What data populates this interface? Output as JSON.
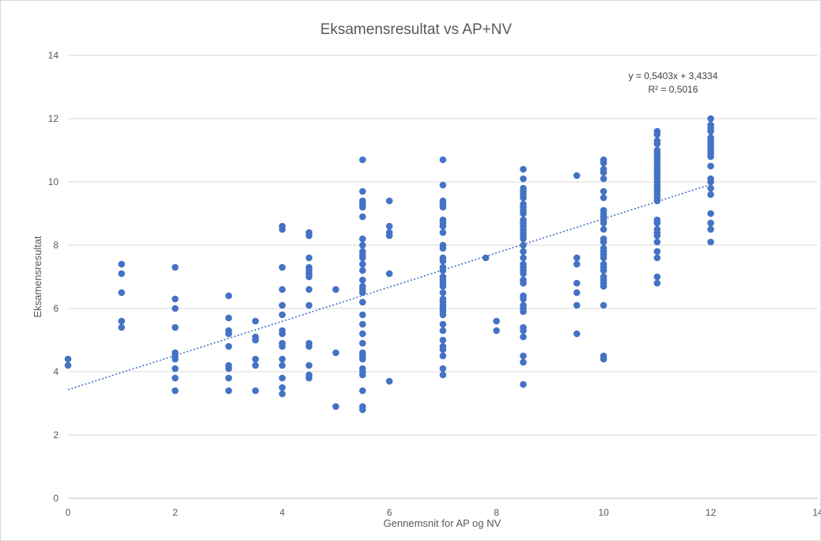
{
  "chart_data": {
    "type": "scatter",
    "title": "Eksamensresultat vs AP+NV",
    "xlabel": "Gennemsnit for AP og NV",
    "ylabel": "Eksamensresultat",
    "xlim": [
      0,
      14
    ],
    "ylim": [
      0,
      14
    ],
    "x_ticks": [
      "0",
      "2",
      "4",
      "6",
      "8",
      "10",
      "12",
      "14"
    ],
    "y_ticks": [
      "0",
      "2",
      "4",
      "6",
      "8",
      "10",
      "12",
      "14"
    ],
    "grid": "horizontal",
    "legend": "none",
    "point_color": "#4472c4",
    "trendline": {
      "type": "linear",
      "slope": 0.5403,
      "intercept": 3.4334,
      "equation_label": "y = 0,5403x + 3,4334",
      "r2_label": "R² = 0,5016",
      "style": "dotted"
    },
    "series": [
      {
        "points": [
          [
            0,
            4.4
          ],
          [
            0,
            4.2
          ],
          [
            1,
            7.4
          ],
          [
            1,
            7.1
          ],
          [
            1,
            6.5
          ],
          [
            1,
            5.6
          ],
          [
            1,
            5.4
          ],
          [
            2,
            7.3
          ],
          [
            2,
            6.3
          ],
          [
            2,
            6.0
          ],
          [
            2,
            5.4
          ],
          [
            2,
            4.6
          ],
          [
            2,
            4.5
          ],
          [
            2,
            4.4
          ],
          [
            2,
            4.1
          ],
          [
            2,
            3.8
          ],
          [
            2,
            3.4
          ],
          [
            3,
            6.4
          ],
          [
            3,
            5.7
          ],
          [
            3,
            5.3
          ],
          [
            3,
            5.2
          ],
          [
            3,
            4.8
          ],
          [
            3,
            4.2
          ],
          [
            3,
            4.1
          ],
          [
            3,
            3.8
          ],
          [
            3,
            3.4
          ],
          [
            3.5,
            5.6
          ],
          [
            3.5,
            5.1
          ],
          [
            3.5,
            5.0
          ],
          [
            3.5,
            4.4
          ],
          [
            3.5,
            4.2
          ],
          [
            3.5,
            3.4
          ],
          [
            4,
            8.6
          ],
          [
            4,
            8.5
          ],
          [
            4,
            7.3
          ],
          [
            4,
            6.6
          ],
          [
            4,
            6.1
          ],
          [
            4,
            5.8
          ],
          [
            4,
            5.3
          ],
          [
            4,
            5.2
          ],
          [
            4,
            4.9
          ],
          [
            4,
            4.8
          ],
          [
            4,
            4.4
          ],
          [
            4,
            4.2
          ],
          [
            4,
            3.8
          ],
          [
            4,
            3.5
          ],
          [
            4,
            3.3
          ],
          [
            4.5,
            8.4
          ],
          [
            4.5,
            8.3
          ],
          [
            4.5,
            7.6
          ],
          [
            4.5,
            7.3
          ],
          [
            4.5,
            7.2
          ],
          [
            4.5,
            7.1
          ],
          [
            4.5,
            7.0
          ],
          [
            4.5,
            6.6
          ],
          [
            4.5,
            6.1
          ],
          [
            4.5,
            4.9
          ],
          [
            4.5,
            4.8
          ],
          [
            4.5,
            4.2
          ],
          [
            4.5,
            3.9
          ],
          [
            4.5,
            3.8
          ],
          [
            5,
            6.6
          ],
          [
            5,
            4.6
          ],
          [
            5,
            2.9
          ],
          [
            5.5,
            10.7
          ],
          [
            5.5,
            9.7
          ],
          [
            5.5,
            9.4
          ],
          [
            5.5,
            9.3
          ],
          [
            5.5,
            9.2
          ],
          [
            5.5,
            8.9
          ],
          [
            5.5,
            8.2
          ],
          [
            5.5,
            8.0
          ],
          [
            5.5,
            7.8
          ],
          [
            5.5,
            7.7
          ],
          [
            5.5,
            7.6
          ],
          [
            5.5,
            7.4
          ],
          [
            5.5,
            7.2
          ],
          [
            5.5,
            6.9
          ],
          [
            5.5,
            6.7
          ],
          [
            5.5,
            6.6
          ],
          [
            5.5,
            6.5
          ],
          [
            5.5,
            6.2
          ],
          [
            5.5,
            5.8
          ],
          [
            5.5,
            5.5
          ],
          [
            5.5,
            5.2
          ],
          [
            5.5,
            4.9
          ],
          [
            5.5,
            4.6
          ],
          [
            5.5,
            4.5
          ],
          [
            5.5,
            4.4
          ],
          [
            5.5,
            4.1
          ],
          [
            5.5,
            4.0
          ],
          [
            5.5,
            3.9
          ],
          [
            5.5,
            3.4
          ],
          [
            5.5,
            2.9
          ],
          [
            5.5,
            2.8
          ],
          [
            6,
            9.4
          ],
          [
            6,
            8.6
          ],
          [
            6,
            8.4
          ],
          [
            6,
            8.3
          ],
          [
            6,
            7.1
          ],
          [
            6,
            3.7
          ],
          [
            7,
            10.7
          ],
          [
            7,
            9.9
          ],
          [
            7,
            9.4
          ],
          [
            7,
            9.3
          ],
          [
            7,
            9.2
          ],
          [
            7,
            8.8
          ],
          [
            7,
            8.7
          ],
          [
            7,
            8.6
          ],
          [
            7,
            8.4
          ],
          [
            7,
            8.0
          ],
          [
            7,
            7.9
          ],
          [
            7,
            7.6
          ],
          [
            7,
            7.5
          ],
          [
            7,
            7.3
          ],
          [
            7,
            7.2
          ],
          [
            7,
            7.0
          ],
          [
            7,
            6.9
          ],
          [
            7,
            6.8
          ],
          [
            7,
            6.7
          ],
          [
            7,
            6.5
          ],
          [
            7,
            6.3
          ],
          [
            7,
            6.2
          ],
          [
            7,
            6.1
          ],
          [
            7,
            6.0
          ],
          [
            7,
            5.9
          ],
          [
            7,
            5.8
          ],
          [
            7,
            5.5
          ],
          [
            7,
            5.3
          ],
          [
            7,
            5.0
          ],
          [
            7,
            4.8
          ],
          [
            7,
            4.7
          ],
          [
            7,
            4.5
          ],
          [
            7,
            4.1
          ],
          [
            7,
            3.9
          ],
          [
            7.8,
            7.6
          ],
          [
            8,
            5.6
          ],
          [
            8,
            5.3
          ],
          [
            8.5,
            10.4
          ],
          [
            8.5,
            10.1
          ],
          [
            8.5,
            9.8
          ],
          [
            8.5,
            9.7
          ],
          [
            8.5,
            9.6
          ],
          [
            8.5,
            9.5
          ],
          [
            8.5,
            9.3
          ],
          [
            8.5,
            9.2
          ],
          [
            8.5,
            9.1
          ],
          [
            8.5,
            9.0
          ],
          [
            8.5,
            8.8
          ],
          [
            8.5,
            8.7
          ],
          [
            8.5,
            8.6
          ],
          [
            8.5,
            8.5
          ],
          [
            8.5,
            8.4
          ],
          [
            8.5,
            8.3
          ],
          [
            8.5,
            8.2
          ],
          [
            8.5,
            8.0
          ],
          [
            8.5,
            7.8
          ],
          [
            8.5,
            7.6
          ],
          [
            8.5,
            7.4
          ],
          [
            8.5,
            7.3
          ],
          [
            8.5,
            7.2
          ],
          [
            8.5,
            7.1
          ],
          [
            8.5,
            6.9
          ],
          [
            8.5,
            6.8
          ],
          [
            8.5,
            6.4
          ],
          [
            8.5,
            6.3
          ],
          [
            8.5,
            6.1
          ],
          [
            8.5,
            6.0
          ],
          [
            8.5,
            5.9
          ],
          [
            8.5,
            5.4
          ],
          [
            8.5,
            5.3
          ],
          [
            8.5,
            5.1
          ],
          [
            8.5,
            4.5
          ],
          [
            8.5,
            4.3
          ],
          [
            8.5,
            3.6
          ],
          [
            9.5,
            10.2
          ],
          [
            9.5,
            7.6
          ],
          [
            9.5,
            7.4
          ],
          [
            9.5,
            6.8
          ],
          [
            9.5,
            6.5
          ],
          [
            9.5,
            6.1
          ],
          [
            9.5,
            5.2
          ],
          [
            10,
            10.7
          ],
          [
            10,
            10.6
          ],
          [
            10,
            10.4
          ],
          [
            10,
            10.3
          ],
          [
            10,
            10.1
          ],
          [
            10,
            9.7
          ],
          [
            10,
            9.5
          ],
          [
            10,
            9.1
          ],
          [
            10,
            9.0
          ],
          [
            10,
            8.9
          ],
          [
            10,
            8.8
          ],
          [
            10,
            8.7
          ],
          [
            10,
            8.5
          ],
          [
            10,
            8.2
          ],
          [
            10,
            8.1
          ],
          [
            10,
            7.9
          ],
          [
            10,
            7.8
          ],
          [
            10,
            7.7
          ],
          [
            10,
            7.6
          ],
          [
            10,
            7.4
          ],
          [
            10,
            7.3
          ],
          [
            10,
            7.2
          ],
          [
            10,
            7.0
          ],
          [
            10,
            6.9
          ],
          [
            10,
            6.8
          ],
          [
            10,
            6.7
          ],
          [
            10,
            6.1
          ],
          [
            10,
            4.5
          ],
          [
            10,
            4.4
          ],
          [
            11,
            11.6
          ],
          [
            11,
            11.5
          ],
          [
            11,
            11.3
          ],
          [
            11,
            11.2
          ],
          [
            11,
            11.0
          ],
          [
            11,
            10.9
          ],
          [
            11,
            10.8
          ],
          [
            11,
            10.7
          ],
          [
            11,
            10.6
          ],
          [
            11,
            10.5
          ],
          [
            11,
            10.4
          ],
          [
            11,
            10.3
          ],
          [
            11,
            10.2
          ],
          [
            11,
            10.1
          ],
          [
            11,
            10.0
          ],
          [
            11,
            9.9
          ],
          [
            11,
            9.8
          ],
          [
            11,
            9.7
          ],
          [
            11,
            9.6
          ],
          [
            11,
            9.5
          ],
          [
            11,
            9.4
          ],
          [
            11,
            8.8
          ],
          [
            11,
            8.7
          ],
          [
            11,
            8.5
          ],
          [
            11,
            8.4
          ],
          [
            11,
            8.3
          ],
          [
            11,
            8.1
          ],
          [
            11,
            7.8
          ],
          [
            11,
            7.6
          ],
          [
            11,
            7.0
          ],
          [
            11,
            6.8
          ],
          [
            12,
            12.0
          ],
          [
            12,
            11.8
          ],
          [
            12,
            11.7
          ],
          [
            12,
            11.6
          ],
          [
            12,
            11.4
          ],
          [
            12,
            11.3
          ],
          [
            12,
            11.2
          ],
          [
            12,
            11.1
          ],
          [
            12,
            11.0
          ],
          [
            12,
            10.9
          ],
          [
            12,
            10.8
          ],
          [
            12,
            10.5
          ],
          [
            12,
            10.1
          ],
          [
            12,
            10.0
          ],
          [
            12,
            9.8
          ],
          [
            12,
            9.6
          ],
          [
            12,
            9.0
          ],
          [
            12,
            8.7
          ],
          [
            12,
            8.5
          ],
          [
            12,
            8.1
          ]
        ]
      }
    ]
  }
}
